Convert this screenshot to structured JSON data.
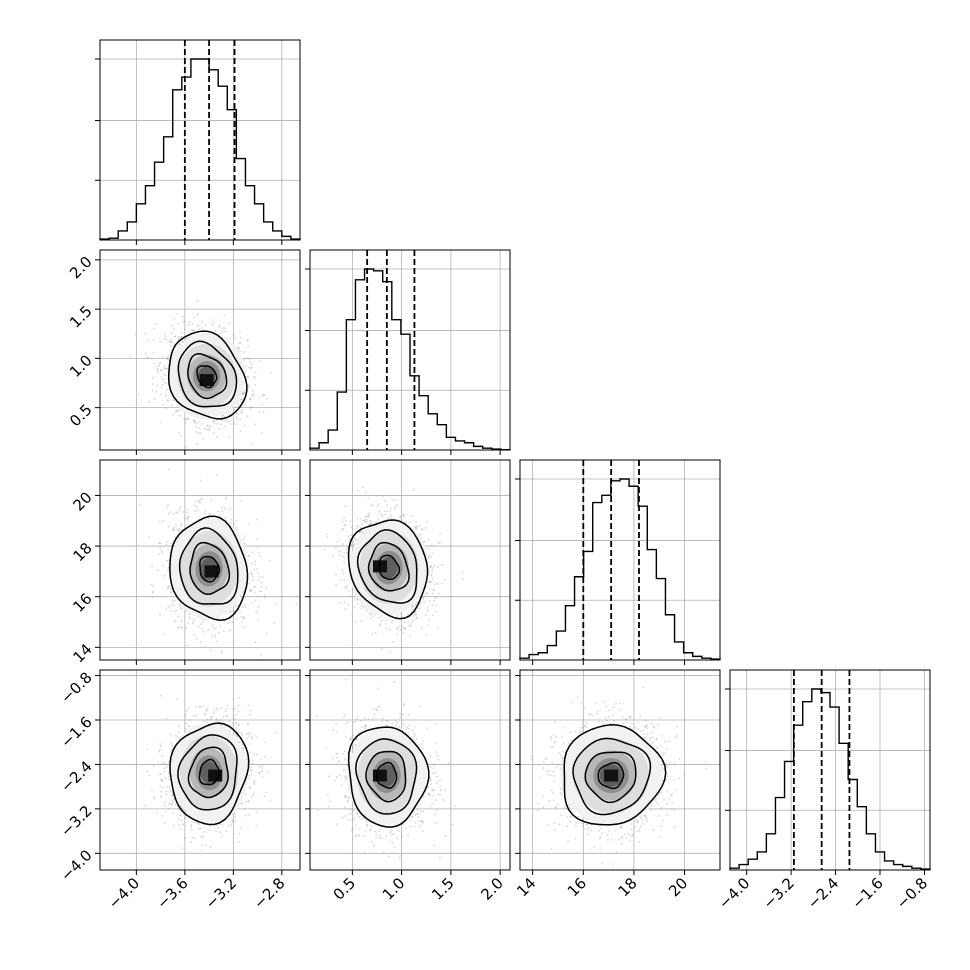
{
  "chart_data": {
    "type": "corner",
    "params": [
      {
        "range": [
          -4.3,
          -2.65
        ],
        "ticks": [
          -4.0,
          -3.6,
          -3.2,
          -2.8
        ],
        "tick_labels": [
          "−4.0",
          "−3.6",
          "−3.2",
          "−2.8"
        ],
        "quantiles": [
          -3.6,
          -3.4,
          -3.19
        ],
        "hist_values": [
          0.005,
          0.01,
          0.05,
          0.1,
          0.2,
          0.3,
          0.43,
          0.57,
          0.83,
          0.9,
          1.0,
          1.0,
          0.94,
          0.85,
          0.72,
          0.45,
          0.3,
          0.2,
          0.1,
          0.05,
          0.02,
          0.005
        ]
      },
      {
        "range": [
          0.07,
          2.1
        ],
        "ticks": [
          0.5,
          1.0,
          1.5,
          2.0
        ],
        "tick_labels": [
          "0.5",
          "1.0",
          "1.5",
          "2.0"
        ],
        "quantiles": [
          0.65,
          0.85,
          1.13
        ],
        "hist_values": [
          0.01,
          0.04,
          0.11,
          0.32,
          0.72,
          0.94,
          1.0,
          0.99,
          0.93,
          0.72,
          0.64,
          0.41,
          0.3,
          0.2,
          0.14,
          0.07,
          0.05,
          0.04,
          0.02,
          0.01,
          0.005,
          0.002
        ]
      },
      {
        "range": [
          13.5,
          21.4
        ],
        "ticks": [
          14,
          16,
          18,
          20
        ],
        "tick_labels": [
          "14",
          "16",
          "18",
          "20"
        ],
        "quantiles": [
          16.0,
          17.1,
          18.2
        ],
        "hist_values": [
          0.01,
          0.03,
          0.04,
          0.08,
          0.16,
          0.3,
          0.46,
          0.6,
          0.87,
          0.91,
          0.99,
          1.0,
          0.96,
          0.85,
          0.61,
          0.45,
          0.25,
          0.1,
          0.04,
          0.02,
          0.01,
          0.005
        ]
      },
      {
        "range": [
          -4.3,
          -0.7
        ],
        "ticks": [
          -4.0,
          -3.2,
          -2.4,
          -1.6,
          -0.8
        ],
        "tick_labels": [
          "−4.0",
          "−3.2",
          "−2.4",
          "−1.6",
          "−0.8"
        ],
        "quantiles": [
          -3.15,
          -2.65,
          -2.15
        ],
        "hist_values": [
          0.01,
          0.03,
          0.06,
          0.1,
          0.2,
          0.4,
          0.6,
          0.8,
          0.93,
          1.0,
          0.98,
          0.9,
          0.7,
          0.5,
          0.35,
          0.2,
          0.1,
          0.05,
          0.03,
          0.02,
          0.01,
          0.005
        ]
      }
    ],
    "pairs": [
      {
        "x": 0,
        "y": 1,
        "center": [
          -3.42,
          0.82
        ],
        "sd": [
          0.16,
          0.22
        ],
        "rho": -0.2,
        "peak": [
          -3.42,
          0.78
        ]
      },
      {
        "x": 0,
        "y": 2,
        "center": [
          -3.4,
          17.1
        ],
        "sd": [
          0.16,
          1.0
        ],
        "rho": -0.1,
        "peak": [
          -3.38,
          17.0
        ]
      },
      {
        "x": 1,
        "y": 2,
        "center": [
          0.87,
          17.15
        ],
        "sd": [
          0.2,
          0.95
        ],
        "rho": -0.15,
        "peak": [
          0.78,
          17.2
        ]
      },
      {
        "x": 0,
        "y": 3,
        "center": [
          -3.4,
          -2.55
        ],
        "sd": [
          0.16,
          0.45
        ],
        "rho": 0.1,
        "peak": [
          -3.35,
          -2.6
        ]
      },
      {
        "x": 1,
        "y": 3,
        "center": [
          0.85,
          -2.6
        ],
        "sd": [
          0.2,
          0.45
        ],
        "rho": -0.05,
        "peak": [
          0.78,
          -2.6
        ]
      },
      {
        "x": 2,
        "y": 3,
        "center": [
          17.1,
          -2.6
        ],
        "sd": [
          1.0,
          0.45
        ],
        "rho": 0.05,
        "peak": [
          17.1,
          -2.6
        ]
      }
    ],
    "contour_levels_sigma": [
      0.5,
      1.0,
      1.5,
      2.0
    ],
    "grid": true,
    "colors": {
      "density": "#000000",
      "points": "#8c8c8c",
      "grid": "#b0b0b0",
      "axes": "#000000"
    }
  }
}
